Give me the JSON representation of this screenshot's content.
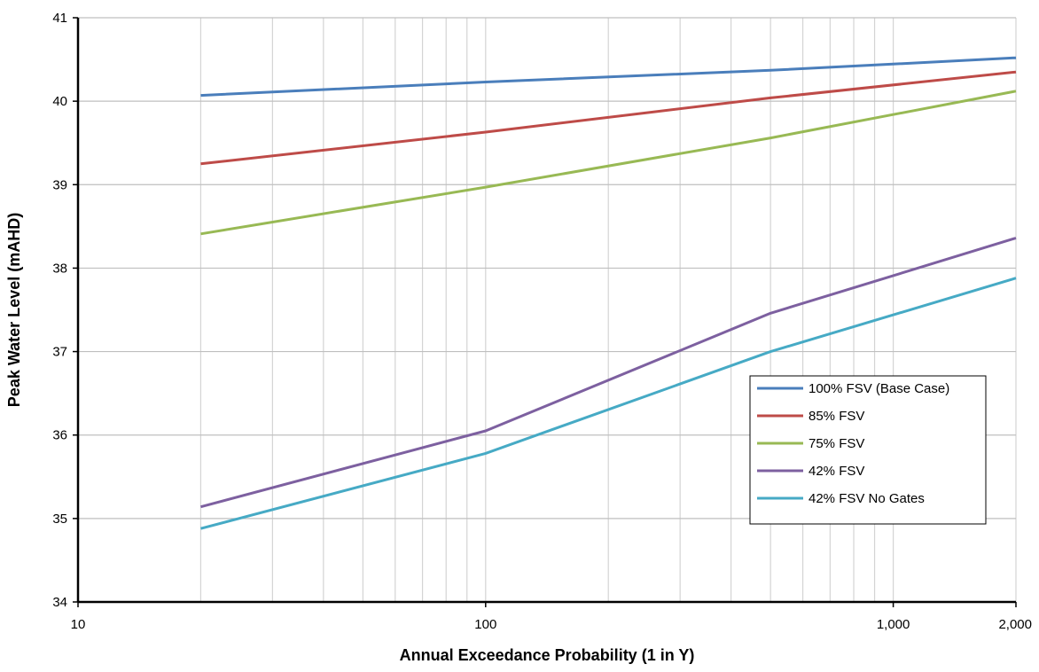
{
  "chart_data": {
    "type": "line",
    "xscale": "log",
    "xlim": [
      10,
      2000
    ],
    "ylim": [
      34,
      41
    ],
    "xlabel": "Annual Exceedance Probability (1 in Y)",
    "ylabel": "Peak Water Level (mAHD)",
    "x_ticks": [
      {
        "value": 10,
        "label": "10"
      },
      {
        "value": 100,
        "label": "100"
      },
      {
        "value": 1000,
        "label": "1,000"
      },
      {
        "value": 2000,
        "label": "2,000"
      }
    ],
    "y_ticks": [
      {
        "value": 34,
        "label": "34"
      },
      {
        "value": 35,
        "label": "35"
      },
      {
        "value": 36,
        "label": "36"
      },
      {
        "value": 37,
        "label": "37"
      },
      {
        "value": 38,
        "label": "38"
      },
      {
        "value": 39,
        "label": "39"
      },
      {
        "value": 40,
        "label": "40"
      },
      {
        "value": 41,
        "label": "41"
      }
    ],
    "grid": true,
    "legend_position": "bottom-right",
    "x": [
      20,
      100,
      500,
      2000
    ],
    "series": [
      {
        "name": "100% FSV (Base Case)",
        "color": "#4a7ebb",
        "values": [
          40.07,
          40.23,
          40.37,
          40.52
        ]
      },
      {
        "name": "85% FSV",
        "color": "#be4b48",
        "values": [
          39.25,
          39.63,
          40.04,
          40.35
        ]
      },
      {
        "name": "75% FSV",
        "color": "#98b954",
        "values": [
          38.41,
          38.97,
          39.56,
          40.12
        ]
      },
      {
        "name": "42% FSV",
        "color": "#7d60a0",
        "values": [
          35.14,
          36.05,
          37.46,
          38.36
        ]
      },
      {
        "name": "42% FSV No Gates",
        "color": "#46aac5",
        "values": [
          34.88,
          35.78,
          37.0,
          37.88
        ]
      }
    ]
  }
}
